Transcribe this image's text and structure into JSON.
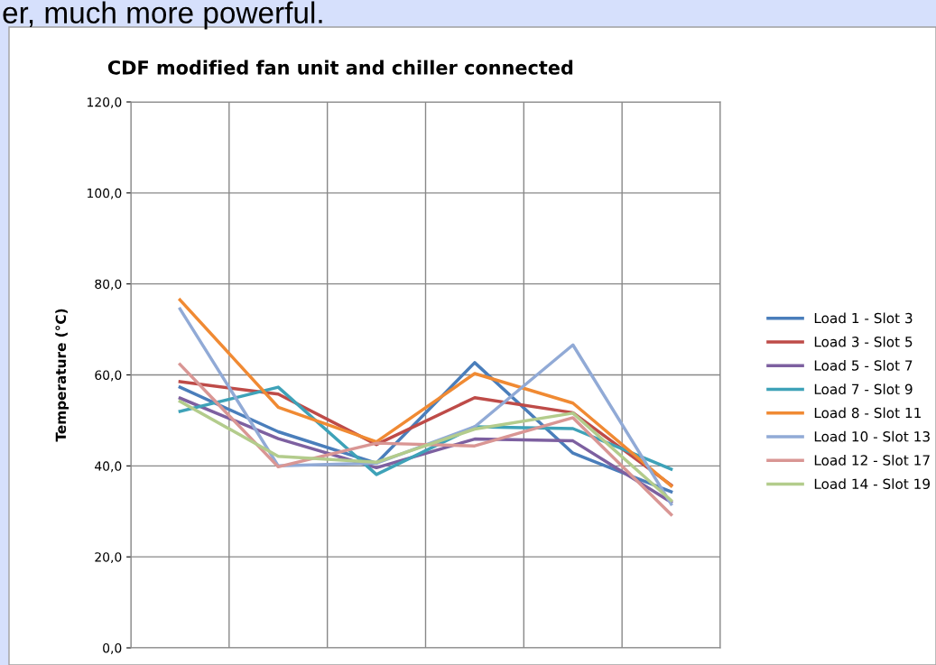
{
  "chart_data": {
    "type": "line",
    "title": "CDF modified fan unit and chiller connected",
    "ylabel": "Temperature (°C)",
    "annotations": [
      "er, much more powerful."
    ],
    "categories": [
      null,
      null,
      null,
      null,
      null,
      null
    ],
    "ylim": [
      0,
      120
    ],
    "yticks": [
      {
        "value": 0,
        "label": "0,0"
      },
      {
        "value": 20,
        "label": "20,0"
      },
      {
        "value": 40,
        "label": "40,0"
      },
      {
        "value": 60,
        "label": "60,0"
      },
      {
        "value": 80,
        "label": "80,0"
      },
      {
        "value": 100,
        "label": "100,0"
      },
      {
        "value": 120,
        "label": "120,0"
      }
    ],
    "grid": true,
    "legend": "right",
    "marker": "none",
    "line_style": "solid",
    "series": [
      {
        "name": "Load 1 - Slot 3",
        "color": "#4a7ebb",
        "values": [
          57.3,
          47.5,
          40.6,
          62.7,
          42.8,
          34.3
        ]
      },
      {
        "name": "Load 3 - Slot 5",
        "color": "#be4b48",
        "values": [
          58.5,
          55.8,
          44.7,
          55.0,
          51.7,
          35.8
        ]
      },
      {
        "name": "Load 5 - Slot 7",
        "color": "#7d60a0",
        "values": [
          54.9,
          46.0,
          39.6,
          45.9,
          45.5,
          32.0
        ]
      },
      {
        "name": "Load 7 - Slot 9",
        "color": "#3ea2b8",
        "values": [
          52.0,
          57.3,
          38.1,
          48.6,
          48.2,
          39.3
        ]
      },
      {
        "name": "Load 8 - Slot 11",
        "color": "#f08a33",
        "values": [
          76.5,
          52.9,
          45.3,
          60.3,
          53.8,
          35.6
        ]
      },
      {
        "name": "Load 10 - Slot 13",
        "color": "#91aad6",
        "values": [
          74.5,
          40.0,
          40.6,
          48.6,
          66.6,
          31.6
        ]
      },
      {
        "name": "Load 12 - Slot 17",
        "color": "#d99694",
        "values": [
          62.3,
          39.8,
          45.0,
          44.4,
          50.6,
          29.3
        ]
      },
      {
        "name": "Load 14 - Slot 19",
        "color": "#b3cc8c",
        "values": [
          54.2,
          42.1,
          40.8,
          48.1,
          51.6,
          32.4
        ]
      }
    ]
  }
}
